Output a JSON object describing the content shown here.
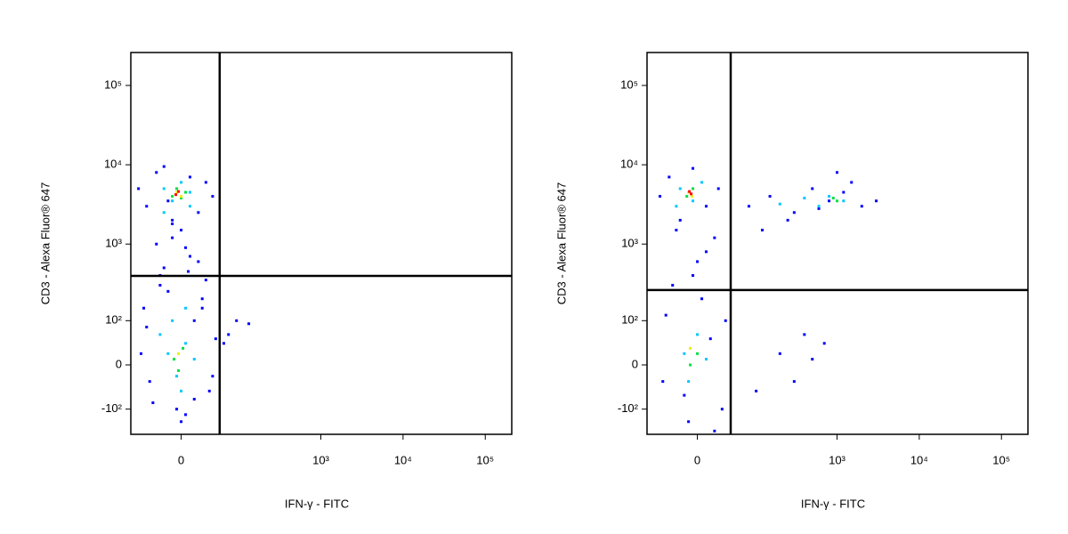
{
  "chart_data": [
    {
      "type": "scatter",
      "x_label": "IFN-γ - FITC",
      "y_label": "CD3 - Alexa Fluor® 647",
      "xscale": {
        "type": "arcsinh",
        "cofactor": 40
      },
      "yscale": {
        "type": "arcsinh",
        "cofactor": 60
      },
      "xlim": [
        -77,
        210000
      ],
      "ylim": [
        -221,
        260000
      ],
      "xticks": [
        0,
        {
          "value": 1000,
          "label": "10³"
        },
        {
          "value": 10000,
          "label": "10⁴"
        },
        {
          "value": 100000,
          "label": "10⁵"
        }
      ],
      "yticks": [
        {
          "value": -100,
          "label": "-10²"
        },
        0,
        {
          "value": 100,
          "label": "10²"
        },
        {
          "value": 1000,
          "label": "10³"
        },
        {
          "value": 10000,
          "label": "10⁴"
        },
        {
          "value": 100000,
          "label": "10⁵"
        }
      ],
      "gates": {
        "x": 52,
        "y": 395
      },
      "series": [
        {
          "color": "#0000ff",
          "x": [
            -60,
            -45,
            -30,
            -20,
            -10,
            0,
            10,
            20,
            30,
            40,
            -50,
            -35,
            -15,
            5,
            25,
            45,
            -40,
            -25,
            0,
            15,
            35,
            -55,
            -20,
            10,
            30,
            -30,
            -10,
            5,
            20,
            -45,
            -5,
            15,
            60,
            90,
            130,
            -25,
            -10,
            8,
            25,
            -15,
            40,
            70
          ],
          "y": [
            5000,
            3000,
            8000,
            9500,
            2000,
            1500,
            7000,
            2500,
            6000,
            4000,
            150,
            -80,
            250,
            -120,
            200,
            50,
            -30,
            300,
            -150,
            100,
            -50,
            20,
            500,
            700,
            350,
            1000,
            1200,
            900,
            600,
            80,
            -100,
            -70,
            40,
            100,
            90,
            400,
            1800,
            450,
            150,
            3500,
            -20,
            60
          ]
        },
        {
          "color": "#00c8ff",
          "x": [
            -20,
            -10,
            0,
            10,
            -15,
            5,
            -5,
            -25,
            15,
            -10,
            0,
            -20,
            10,
            5
          ],
          "y": [
            5000,
            3500,
            6000,
            3000,
            20,
            40,
            -20,
            60,
            10,
            100,
            -50,
            2500,
            4500,
            150
          ]
        },
        {
          "color": "#00e040",
          "x": [
            -10,
            -5,
            0,
            5,
            -8,
            2,
            -3
          ],
          "y": [
            4000,
            5000,
            3800,
            4500,
            10,
            30,
            -10
          ]
        },
        {
          "color": "#f0f000",
          "x": [
            -5,
            0,
            -3
          ],
          "y": [
            4500,
            4000,
            20
          ]
        },
        {
          "color": "#ff0000",
          "x": [
            -3,
            -6
          ],
          "y": [
            4600,
            4200
          ]
        }
      ]
    },
    {
      "type": "scatter",
      "x_label": "IFN-γ - FITC",
      "y_label": "CD3 - Alexa Fluor® 647",
      "xscale": {
        "type": "arcsinh",
        "cofactor": 40
      },
      "yscale": {
        "type": "arcsinh",
        "cofactor": 60
      },
      "xlim": [
        -77,
        210000
      ],
      "ylim": [
        -221,
        260000
      ],
      "xticks": [
        0,
        {
          "value": 1000,
          "label": "10³"
        },
        {
          "value": 10000,
          "label": "10⁴"
        },
        {
          "value": 100000,
          "label": "10⁵"
        }
      ],
      "yticks": [
        {
          "value": -100,
          "label": "-10²"
        },
        0,
        {
          "value": 100,
          "label": "10²"
        },
        {
          "value": 1000,
          "label": "10³"
        },
        {
          "value": 10000,
          "label": "10⁴"
        },
        {
          "value": 100000,
          "label": "10⁵"
        }
      ],
      "gates": {
        "x": 43,
        "y": 260
      },
      "series": [
        {
          "color": "#0000ff",
          "x": [
            -50,
            -35,
            -20,
            -5,
            10,
            25,
            -40,
            -15,
            5,
            30,
            -30,
            -10,
            15,
            35,
            -45,
            0,
            20,
            80,
            150,
            300,
            500,
            800,
            1200,
            2000,
            3000,
            120,
            250,
            600,
            1000,
            1500,
            400,
            200,
            700,
            100,
            300,
            500,
            -25,
            10,
            -5,
            20
          ],
          "y": [
            4000,
            7000,
            2000,
            9000,
            3000,
            5000,
            120,
            -60,
            200,
            -100,
            300,
            -150,
            50,
            100,
            -30,
            600,
            1200,
            3000,
            4000,
            2500,
            5000,
            3500,
            4500,
            3000,
            3500,
            1500,
            2000,
            2800,
            8000,
            6000,
            60,
            20,
            40,
            -50,
            -30,
            10,
            1500,
            800,
            400,
            -200
          ]
        },
        {
          "color": "#00c8ff",
          "x": [
            -20,
            -5,
            5,
            -15,
            -10,
            0,
            10,
            -25,
            200,
            400,
            800,
            1200,
            600
          ],
          "y": [
            5000,
            3500,
            6000,
            20,
            -30,
            60,
            10,
            3000,
            3200,
            3800,
            4000,
            3500,
            3000
          ]
        },
        {
          "color": "#00e040",
          "x": [
            -12,
            -5,
            -8,
            0,
            900,
            1000
          ],
          "y": [
            4000,
            5000,
            0,
            20,
            3800,
            3500
          ]
        },
        {
          "color": "#f0f000",
          "x": [
            -10,
            -6,
            -8
          ],
          "y": [
            4500,
            4000,
            30
          ]
        },
        {
          "color": "#ff0000",
          "x": [
            -9,
            -7
          ],
          "y": [
            4600,
            4300
          ]
        }
      ]
    }
  ]
}
